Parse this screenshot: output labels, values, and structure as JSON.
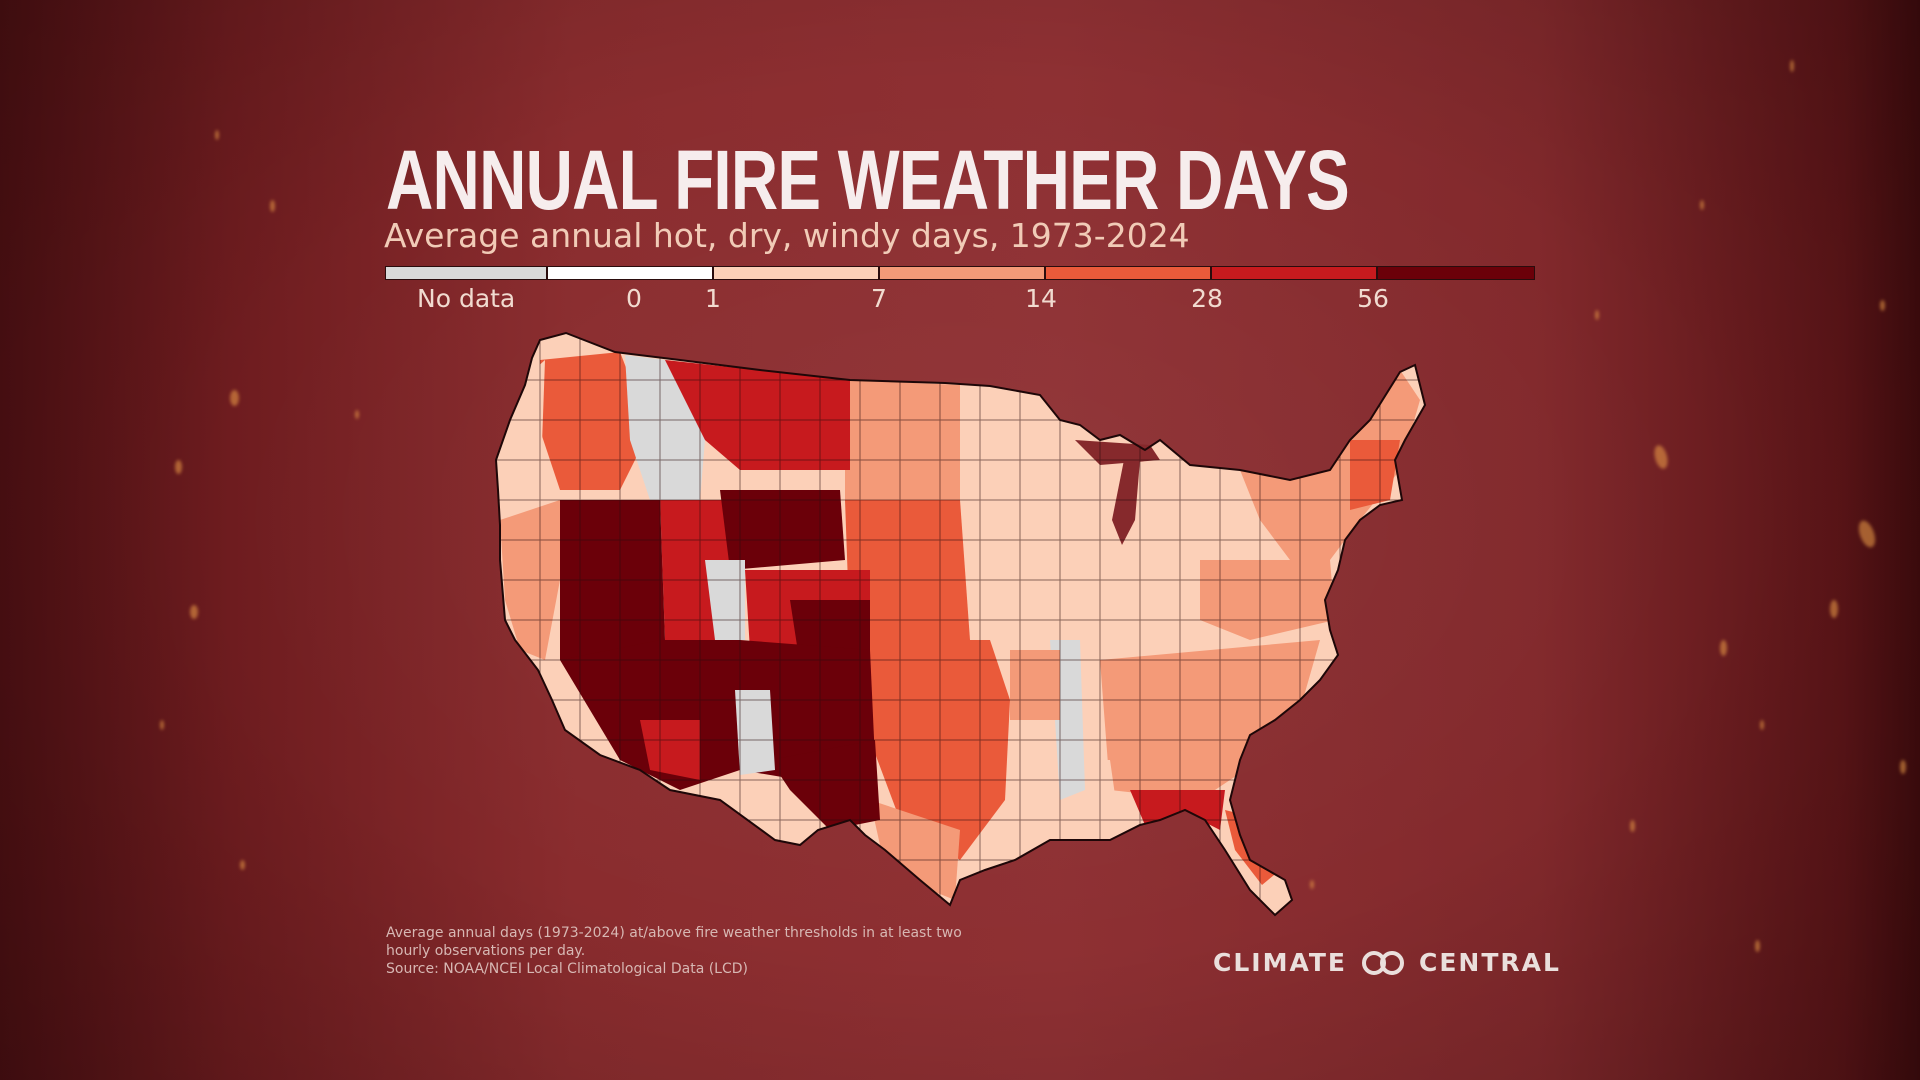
{
  "title": "ANNUAL FIRE WEATHER DAYS",
  "subtitle": "Average annual hot, dry, windy days, 1973-2024",
  "legend": {
    "no_data_label": "No data",
    "bins": [
      {
        "label": "No data",
        "color": "#d9d9d9"
      },
      {
        "label": "0",
        "color": "#ffffff"
      },
      {
        "label": "1",
        "color": "#fcd0b8"
      },
      {
        "label": "7",
        "color": "#f49a78"
      },
      {
        "label": "14",
        "color": "#ea5a3a"
      },
      {
        "label": "28",
        "color": "#c71a1e"
      },
      {
        "label": "56",
        "color": "#6b0009"
      }
    ],
    "tick_labels": [
      "0",
      "1",
      "7",
      "14",
      "28",
      "56"
    ]
  },
  "map": {
    "region": "Contiguous United States",
    "regions": [
      {
        "name": "Pacific Northwest coast",
        "value_bin": "1-7"
      },
      {
        "name": "Washington / Oregon interior",
        "value_bin": "14-28"
      },
      {
        "name": "Northern Rockies (Montana)",
        "value_bin": "28-56"
      },
      {
        "name": "Northern Plains",
        "value_bin": "7-14"
      },
      {
        "name": "California",
        "value_bin": "1-7"
      },
      {
        "name": "Nevada",
        "value_bin": "56+"
      },
      {
        "name": "Utah",
        "value_bin": "28-56"
      },
      {
        "name": "Wyoming",
        "value_bin": "56+"
      },
      {
        "name": "Colorado",
        "value_bin": "28-56"
      },
      {
        "name": "Southeast Colorado",
        "value_bin": "56+"
      },
      {
        "name": "Arizona",
        "value_bin": "56+"
      },
      {
        "name": "New Mexico",
        "value_bin": "56+"
      },
      {
        "name": "West Texas",
        "value_bin": "56+"
      },
      {
        "name": "Central Texas / Oklahoma",
        "value_bin": "14-28"
      },
      {
        "name": "Kansas / Nebraska",
        "value_bin": "14-28"
      },
      {
        "name": "Midwest",
        "value_bin": "1-7"
      },
      {
        "name": "Great Lakes",
        "value_bin": "1-7"
      },
      {
        "name": "Southeast",
        "value_bin": "7-14"
      },
      {
        "name": "Florida Panhandle",
        "value_bin": "28-56"
      },
      {
        "name": "Florida Peninsula",
        "value_bin": "14-28"
      },
      {
        "name": "Mid-Atlantic",
        "value_bin": "7-14"
      },
      {
        "name": "Northeast",
        "value_bin": "7-14"
      }
    ]
  },
  "footnote": {
    "line1": "Average annual days (1973-2024) at/above fire weather thresholds in at least two hourly observations per day.",
    "line2": "Source: NOAA/NCEI Local Climatological Data (LCD)"
  },
  "brand": {
    "left": "CLIMATE",
    "right": "CENTRAL",
    "logo_icon": "infinity-rings-icon"
  }
}
